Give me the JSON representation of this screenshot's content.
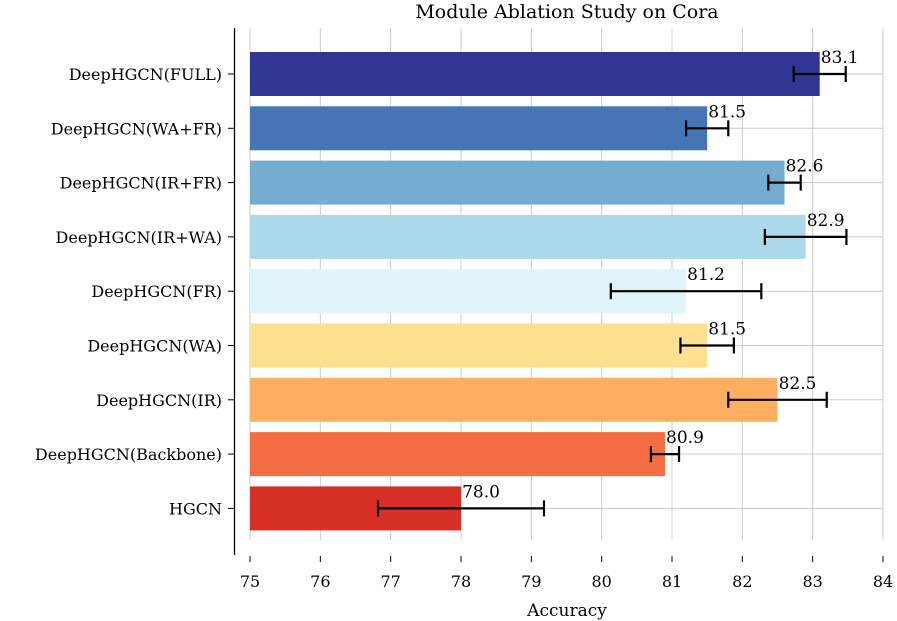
{
  "chart_data": {
    "type": "bar",
    "orientation": "horizontal",
    "title": "Module Ablation Study on Cora",
    "xlabel": "Accuracy",
    "ylabel": "",
    "xlim": [
      75,
      84
    ],
    "xticks": [
      "75",
      "76",
      "77",
      "78",
      "79",
      "80",
      "81",
      "82",
      "83",
      "84"
    ],
    "grid": true,
    "categories": [
      "DeepHGCN(FULL)",
      "DeepHGCN(WA+FR)",
      "DeepHGCN(IR+FR)",
      "DeepHGCN(IR+WA)",
      "DeepHGCN(FR)",
      "DeepHGCN(WA)",
      "DeepHGCN(IR)",
      "DeepHGCN(Backbone)",
      "HGCN"
    ],
    "values": [
      83.1,
      81.5,
      82.6,
      82.9,
      81.2,
      81.5,
      82.5,
      80.9,
      78.0
    ],
    "value_labels": [
      "83.1",
      "81.5",
      "82.6",
      "82.9",
      "81.2",
      "81.5",
      "82.5",
      "80.9",
      "78.0"
    ],
    "errors": [
      0.37,
      0.3,
      0.23,
      0.58,
      1.07,
      0.38,
      0.7,
      0.2,
      1.18
    ],
    "colors": [
      "#313695",
      "#4575b4",
      "#74add1",
      "#abd9e9",
      "#e0f3f8",
      "#fee090",
      "#fdae61",
      "#f46d43",
      "#d73027"
    ]
  }
}
